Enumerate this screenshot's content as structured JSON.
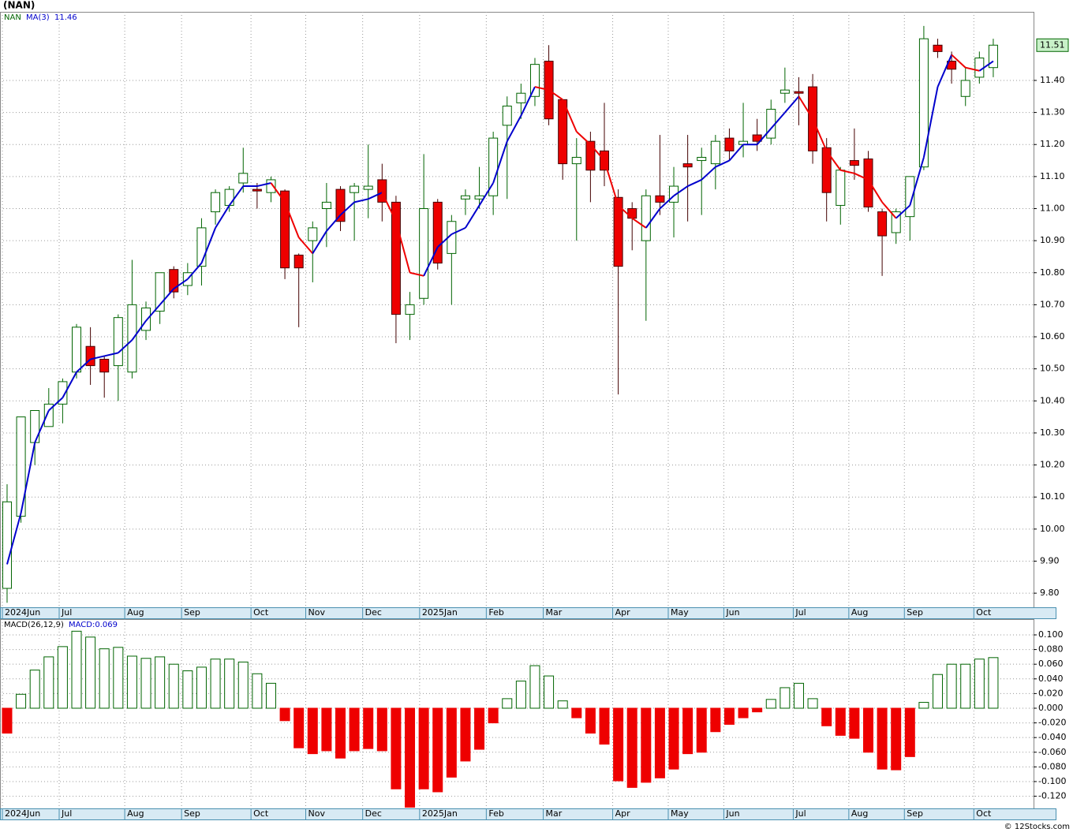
{
  "chart_data": [
    {
      "type": "candlestick",
      "title": "(NAN)",
      "symbol": "NAN",
      "up_color": "#006400",
      "down_color": "#ee0000",
      "ma_up_color": "#0000cc",
      "ma_down_color": "#ee0000",
      "xlim": [
        -0.51,
        73.9
      ],
      "xticks": [
        {
          "value": -0.34,
          "label": "2024Jun"
        },
        {
          "value": 3.75,
          "label": "Jul"
        },
        {
          "value": 8.47,
          "label": "Aug"
        },
        {
          "value": 12.56,
          "label": "Sep"
        },
        {
          "value": 17.56,
          "label": "Oct"
        },
        {
          "value": 21.5,
          "label": "Nov"
        },
        {
          "value": 25.6,
          "label": "Dec"
        },
        {
          "value": 29.7,
          "label": "2025Jan"
        },
        {
          "value": 34.5,
          "label": "Feb"
        },
        {
          "value": 38.6,
          "label": "Mar"
        },
        {
          "value": 43.6,
          "label": "Apr"
        },
        {
          "value": 47.6,
          "label": "May"
        },
        {
          "value": 51.6,
          "label": "Jun"
        },
        {
          "value": 56.6,
          "label": "Jul"
        },
        {
          "value": 60.6,
          "label": "Aug"
        },
        {
          "value": 64.6,
          "label": "Sep"
        },
        {
          "value": 69.6,
          "label": "Oct"
        }
      ],
      "ylim": [
        9.756,
        11.614
      ],
      "yticks": [
        {
          "value": 9.8,
          "label": "9.80"
        },
        {
          "value": 9.9,
          "label": "9.90"
        },
        {
          "value": 10.0,
          "label": "10.00"
        },
        {
          "value": 10.1,
          "label": "10.10"
        },
        {
          "value": 10.2,
          "label": "10.20"
        },
        {
          "value": 10.3,
          "label": "10.30"
        },
        {
          "value": 10.4,
          "label": "10.40"
        },
        {
          "value": 10.5,
          "label": "10.50"
        },
        {
          "value": 10.6,
          "label": "10.60"
        },
        {
          "value": 10.7,
          "label": "10.70"
        },
        {
          "value": 10.8,
          "label": "10.80"
        },
        {
          "value": 10.9,
          "label": "10.90"
        },
        {
          "value": 11.0,
          "label": "11.00"
        },
        {
          "value": 11.1,
          "label": "11.10"
        },
        {
          "value": 11.2,
          "label": "11.20"
        },
        {
          "value": 11.3,
          "label": "11.30"
        },
        {
          "value": 11.4,
          "label": "11.40"
        }
      ],
      "open": [
        9.815,
        10.04,
        10.27,
        10.32,
        10.39,
        10.49,
        10.57,
        10.53,
        10.51,
        10.49,
        10.62,
        10.68,
        10.81,
        10.76,
        10.82,
        10.99,
        11.01,
        11.08,
        11.06,
        11.05,
        11.055,
        10.855,
        10.9,
        11.0,
        11.06,
        11.05,
        11.06,
        11.09,
        11.02,
        10.67,
        10.72,
        11.02,
        10.86,
        11.03,
        11.03,
        11.04,
        11.26,
        11.33,
        11.35,
        11.46,
        11.34,
        11.14,
        11.21,
        11.18,
        11.035,
        11.0,
        10.9,
        11.04,
        11.02,
        11.14,
        11.15,
        11.14,
        11.22,
        11.2,
        11.23,
        11.22,
        11.36,
        11.365,
        11.38,
        11.19,
        11.01,
        11.15,
        11.155,
        10.99,
        10.925,
        10.975,
        11.13,
        11.51,
        11.46,
        11.35,
        11.41,
        11.44
      ],
      "high": [
        10.14,
        10.35,
        10.37,
        10.44,
        10.47,
        10.64,
        10.63,
        10.54,
        10.67,
        10.84,
        10.71,
        10.8,
        10.82,
        10.83,
        10.97,
        11.06,
        11.07,
        11.19,
        11.08,
        11.1,
        11.06,
        10.86,
        10.96,
        11.08,
        11.07,
        11.08,
        11.2,
        11.14,
        11.04,
        10.74,
        11.17,
        11.03,
        10.98,
        11.06,
        11.13,
        11.24,
        11.35,
        11.39,
        11.47,
        11.51,
        11.34,
        11.22,
        11.24,
        11.33,
        11.06,
        11.02,
        11.06,
        11.23,
        11.13,
        11.23,
        11.19,
        11.23,
        11.25,
        11.33,
        11.28,
        11.34,
        11.44,
        11.41,
        11.42,
        11.22,
        11.13,
        11.25,
        11.18,
        11.0,
        11.0,
        11.1,
        11.57,
        11.53,
        11.49,
        11.44,
        11.49,
        11.53
      ],
      "low": [
        9.77,
        10.02,
        10.2,
        10.32,
        10.33,
        10.47,
        10.45,
        10.41,
        10.4,
        10.47,
        10.59,
        10.64,
        10.72,
        10.73,
        10.76,
        10.95,
        10.99,
        11.05,
        11.0,
        11.02,
        10.78,
        10.63,
        10.77,
        10.88,
        10.93,
        10.9,
        10.97,
        10.96,
        10.58,
        10.59,
        10.7,
        10.81,
        10.7,
        10.98,
        11.0,
        10.98,
        11.03,
        11.28,
        11.32,
        11.26,
        11.09,
        10.9,
        11.02,
        11.07,
        10.42,
        10.87,
        10.65,
        10.98,
        10.91,
        10.96,
        10.98,
        11.06,
        11.15,
        11.16,
        11.18,
        11.2,
        11.33,
        11.26,
        11.14,
        10.96,
        10.95,
        11.09,
        10.99,
        10.79,
        10.89,
        10.9,
        11.12,
        11.47,
        11.39,
        11.32,
        11.39,
        11.41
      ],
      "close": [
        10.085,
        10.35,
        10.37,
        10.39,
        10.46,
        10.63,
        10.51,
        10.49,
        10.66,
        10.7,
        10.69,
        10.8,
        10.74,
        10.8,
        10.94,
        11.05,
        11.06,
        11.11,
        11.055,
        11.09,
        10.815,
        10.815,
        10.94,
        11.02,
        10.96,
        11.07,
        11.07,
        11.02,
        10.67,
        10.7,
        11.0,
        10.83,
        10.96,
        11.04,
        11.04,
        11.22,
        11.32,
        11.36,
        11.45,
        11.28,
        11.14,
        11.16,
        11.12,
        11.12,
        10.82,
        10.97,
        11.04,
        11.02,
        11.07,
        11.13,
        11.16,
        11.21,
        11.18,
        11.21,
        11.21,
        11.31,
        11.37,
        11.36,
        11.18,
        11.05,
        11.12,
        11.135,
        11.005,
        10.915,
        10.99,
        11.1,
        11.53,
        11.49,
        11.435,
        11.4,
        11.47,
        11.51
      ],
      "ma": {
        "name": "MA(3)",
        "value_label": "11.46",
        "values": [
          9.89,
          10.05,
          10.27,
          10.37,
          10.41,
          10.49,
          10.53,
          10.54,
          10.55,
          10.59,
          10.65,
          10.7,
          10.75,
          10.78,
          10.83,
          10.94,
          11.01,
          11.07,
          11.07,
          11.08,
          11.02,
          10.91,
          10.86,
          10.93,
          10.98,
          11.02,
          11.03,
          11.05,
          10.96,
          10.8,
          10.79,
          10.88,
          10.92,
          10.94,
          11.01,
          11.08,
          11.21,
          11.29,
          11.38,
          11.37,
          11.34,
          11.24,
          11.2,
          11.15,
          11.01,
          10.97,
          10.94,
          11.0,
          11.04,
          11.07,
          11.09,
          11.13,
          11.15,
          11.2,
          11.2,
          11.25,
          11.3,
          11.35,
          11.28,
          11.18,
          11.12,
          11.11,
          11.09,
          11.02,
          10.97,
          11.01,
          11.16,
          11.38,
          11.48,
          11.44,
          11.43,
          11.46
        ]
      }
    },
    {
      "type": "bar",
      "title": "MACD(26,12,9)",
      "value_prefix": "MACD:",
      "up_color": "#006400",
      "down_color": "#ee0000",
      "xlim": [
        -0.51,
        73.9
      ],
      "xticks": [
        {
          "value": -0.34,
          "label": "2024Jun"
        },
        {
          "value": 3.75,
          "label": "Jul"
        },
        {
          "value": 8.47,
          "label": "Aug"
        },
        {
          "value": 12.56,
          "label": "Sep"
        },
        {
          "value": 17.56,
          "label": "Oct"
        },
        {
          "value": 21.5,
          "label": "Nov"
        },
        {
          "value": 25.6,
          "label": "Dec"
        },
        {
          "value": 29.7,
          "label": "2025Jan"
        },
        {
          "value": 34.5,
          "label": "Feb"
        },
        {
          "value": 38.6,
          "label": "Mar"
        },
        {
          "value": 43.6,
          "label": "Apr"
        },
        {
          "value": 47.6,
          "label": "May"
        },
        {
          "value": 51.6,
          "label": "Jun"
        },
        {
          "value": 56.6,
          "label": "Jul"
        },
        {
          "value": 60.6,
          "label": "Aug"
        },
        {
          "value": 64.6,
          "label": "Sep"
        },
        {
          "value": 69.6,
          "label": "Oct"
        }
      ],
      "ylim": [
        -0.1366,
        0.1215
      ],
      "yticks": [
        {
          "value": -0.12,
          "label": "-0.120"
        },
        {
          "value": -0.1,
          "label": "-0.100"
        },
        {
          "value": -0.08,
          "label": "-0.080"
        },
        {
          "value": -0.06,
          "label": "-0.060"
        },
        {
          "value": -0.04,
          "label": "-0.040"
        },
        {
          "value": -0.02,
          "label": "-0.020"
        },
        {
          "value": 0,
          "label": "0.000"
        },
        {
          "value": 0.02,
          "label": "0.020"
        },
        {
          "value": 0.04,
          "label": "0.040"
        },
        {
          "value": 0.06,
          "label": "0.060"
        },
        {
          "value": 0.08,
          "label": "0.080"
        },
        {
          "value": 0.1,
          "label": "0.100"
        }
      ],
      "values": [
        -0.034,
        0.019,
        0.052,
        0.07,
        0.084,
        0.105,
        0.097,
        0.081,
        0.083,
        0.071,
        0.068,
        0.07,
        0.06,
        0.051,
        0.056,
        0.067,
        0.067,
        0.063,
        0.047,
        0.034,
        -0.017,
        -0.054,
        -0.062,
        -0.058,
        -0.068,
        -0.058,
        -0.055,
        -0.058,
        -0.11,
        -0.135,
        -0.11,
        -0.114,
        -0.094,
        -0.072,
        -0.056,
        -0.02,
        0.013,
        0.037,
        0.058,
        0.044,
        0.01,
        -0.013,
        -0.034,
        -0.049,
        -0.099,
        -0.108,
        -0.101,
        -0.095,
        -0.083,
        -0.062,
        -0.06,
        -0.032,
        -0.022,
        -0.013,
        -0.005,
        0.012,
        0.028,
        0.034,
        0.013,
        -0.024,
        -0.037,
        -0.041,
        -0.06,
        -0.083,
        -0.084,
        -0.066,
        0.008,
        0.046,
        0.06,
        0.06,
        0.067,
        0.069
      ]
    }
  ],
  "footer": "© 12Stocks.com"
}
